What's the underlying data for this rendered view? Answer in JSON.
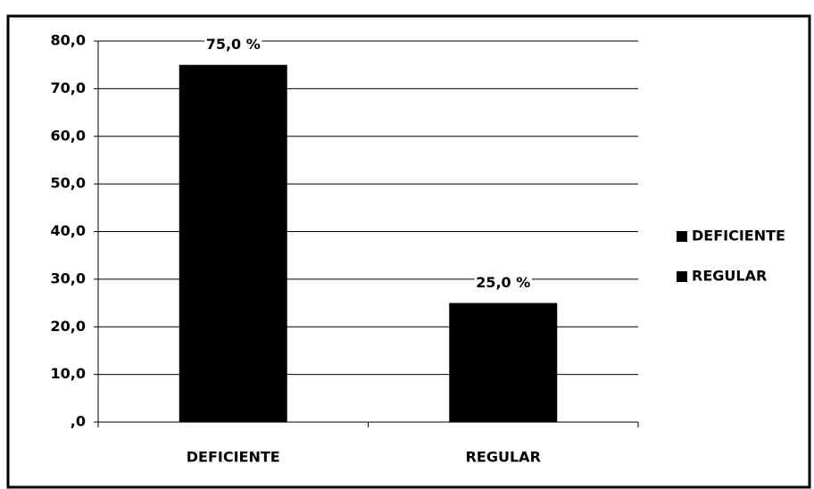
{
  "chart_data": {
    "type": "bar",
    "categories": [
      "DEFICIENTE",
      "REGULAR"
    ],
    "values": [
      75,
      25
    ],
    "value_labels": [
      "75,0 %",
      "25,0 %"
    ],
    "color": "#000000",
    "ylim": [
      0,
      80
    ],
    "yticks": [
      {
        "value": 0,
        "label": ",0"
      },
      {
        "value": 10,
        "label": "10,0"
      },
      {
        "value": 20,
        "label": "20,0"
      },
      {
        "value": 30,
        "label": "30,0"
      },
      {
        "value": 40,
        "label": "40,0"
      },
      {
        "value": 50,
        "label": "50,0"
      },
      {
        "value": 60,
        "label": "60,0"
      },
      {
        "value": 70,
        "label": "70,0"
      },
      {
        "value": 80,
        "label": "80,0"
      }
    ],
    "grid": true,
    "legend": "right"
  }
}
